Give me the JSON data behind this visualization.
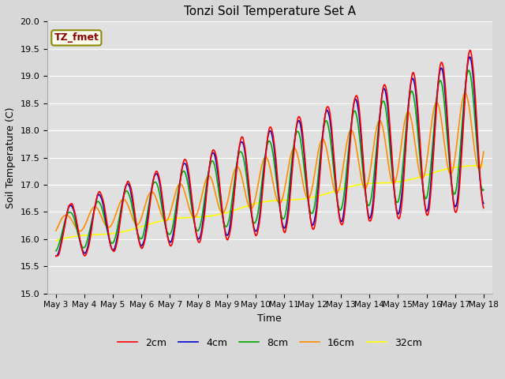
{
  "title": "Tonzi Soil Temperature Set A",
  "xlabel": "Time",
  "ylabel": "Soil Temperature (C)",
  "ylim": [
    15.0,
    20.0
  ],
  "yticks": [
    15.0,
    15.5,
    16.0,
    16.5,
    17.0,
    17.5,
    18.0,
    18.5,
    19.0,
    19.5,
    20.0
  ],
  "annotation_text": "TZ_fmet",
  "annotation_color": "#8B0000",
  "annotation_bg": "#FFFFF0",
  "annotation_border": "#8B8B00",
  "fig_bg_color": "#D8D8D8",
  "plot_bg": "#E0E0E0",
  "line_colors": {
    "2cm": "#FF0000",
    "4cm": "#0000CC",
    "8cm": "#00AA00",
    "16cm": "#FF8C00",
    "32cm": "#FFFF00"
  },
  "xtick_labels": [
    "May 3",
    "May 4",
    "May 5",
    "May 6",
    "May 7",
    "May 8",
    "May 9",
    "May 10",
    "May 11",
    "May 12",
    "May 13",
    "May 14",
    "May 15",
    "May 16",
    "May 17",
    "May 18"
  ],
  "n_points": 960,
  "days": 15
}
